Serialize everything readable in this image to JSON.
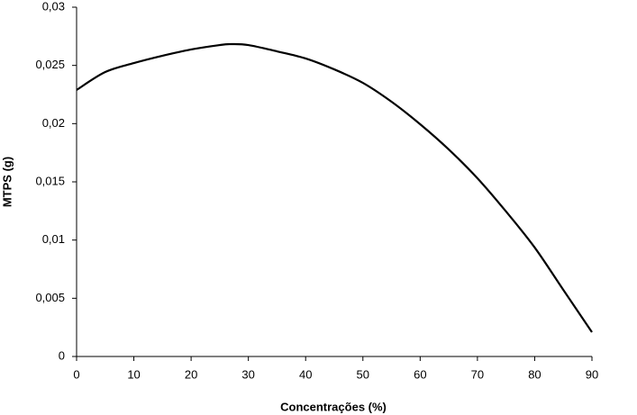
{
  "chart_data": {
    "type": "line",
    "xlabel": "Concentrações (%)",
    "ylabel": "MTPS (g)",
    "x": [
      0,
      5,
      10,
      15,
      20,
      25,
      27,
      30,
      35,
      40,
      45,
      50,
      55,
      60,
      65,
      70,
      75,
      80,
      85,
      90
    ],
    "series": [
      {
        "name": "MTPS",
        "color": "#000000",
        "values": [
          0.02289,
          0.02443,
          0.0252,
          0.02583,
          0.02637,
          0.02675,
          0.02683,
          0.02675,
          0.02621,
          0.0256,
          0.02466,
          0.0235,
          0.02188,
          0.01995,
          0.01778,
          0.01531,
          0.01245,
          0.00936,
          0.00572,
          0.00209
        ]
      }
    ],
    "xlim": [
      0,
      90
    ],
    "xticks": [
      0,
      10,
      20,
      30,
      40,
      50,
      60,
      70,
      80,
      90
    ],
    "ylim": [
      0,
      0.03
    ],
    "yticks": [
      0,
      {
        "value": 0.005,
        "label": "0,005"
      },
      {
        "value": 0.01,
        "label": "0,01"
      },
      {
        "value": 0.015,
        "label": "0,015"
      },
      {
        "value": 0.02,
        "label": "0,02"
      },
      {
        "value": 0.025,
        "label": "0,025"
      },
      {
        "value": 0.03,
        "label": "0,03"
      }
    ],
    "grid": false
  }
}
